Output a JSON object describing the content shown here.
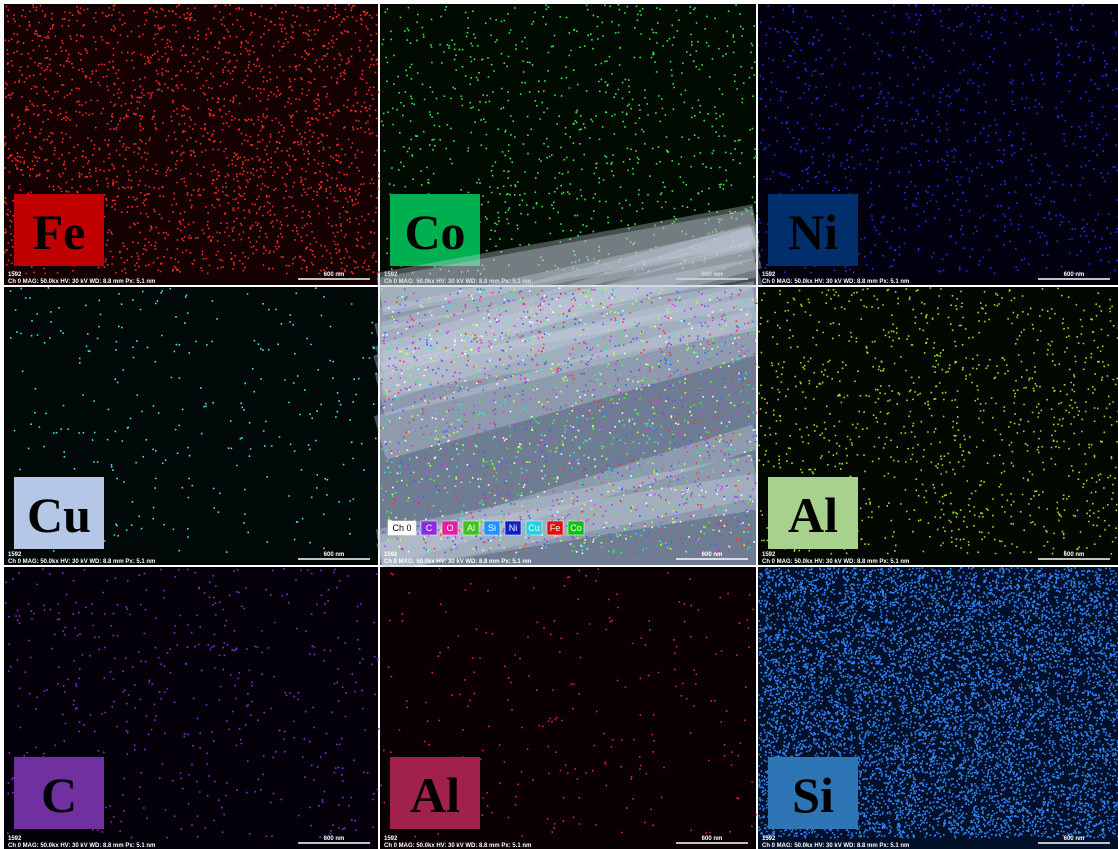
{
  "footer": {
    "id": "1592",
    "info": "Ch 0   MAG: 50.0kx   HV: 30 kV   WD: 8.8 mm   Px: 5.1 nm",
    "scale": "600 nm"
  },
  "panels": [
    {
      "label": "Fe"
    },
    {
      "label": "Co"
    },
    {
      "label": "Ni"
    },
    {
      "label": "Cu"
    },
    {
      "legend": [
        "Ch 0",
        "C",
        "O",
        "Al",
        "Si",
        "Ni",
        "Cu",
        "Fe",
        "Co"
      ]
    },
    {
      "label": "Al"
    },
    {
      "label": "C"
    },
    {
      "label": "Al"
    },
    {
      "label": "Si"
    }
  ]
}
